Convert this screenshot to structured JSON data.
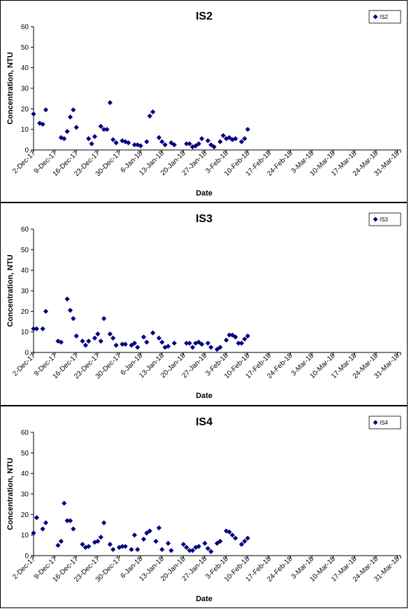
{
  "colors": {
    "marker": "#000080",
    "axis": "#000000",
    "background": "#ffffff"
  },
  "chart_data": [
    {
      "type": "scatter",
      "title": "IS2",
      "xlabel": "Date",
      "ylabel": "Concentration, NTU",
      "ylim": [
        0,
        60
      ],
      "yticks": [
        "0",
        "10",
        "20",
        "30",
        "40",
        "50",
        "60"
      ],
      "xticks": [
        "2-Dec-17",
        "9-Dec-17",
        "16-Dec-17",
        "23-Dec-17",
        "30-Dec-17",
        "6-Jan-18",
        "13-Jan-18",
        "20-Jan-18",
        "27-Jan-18",
        "3-Feb-18",
        "10-Feb-18",
        "17-Feb-18",
        "24-Feb-18",
        "3-Mar-18",
        "10-Mar-18",
        "17-Mar-18",
        "24-Mar-18",
        "31-Mar-18"
      ],
      "xlim": [
        "2017-12-02",
        "2018-04-01"
      ],
      "grid": false,
      "legend_position": "top-right",
      "marker": "diamond",
      "series": [
        {
          "name": "IS2",
          "points": [
            [
              "2017-12-02",
              17.5
            ],
            [
              "2017-12-04",
              13
            ],
            [
              "2017-12-05",
              12.5
            ],
            [
              "2017-12-06",
              19.5
            ],
            [
              "2017-12-11",
              6
            ],
            [
              "2017-12-12",
              5.5
            ],
            [
              "2017-12-13",
              9
            ],
            [
              "2017-12-14",
              16
            ],
            [
              "2017-12-15",
              19.5
            ],
            [
              "2017-12-16",
              11
            ],
            [
              "2017-12-20",
              5.5
            ],
            [
              "2017-12-21",
              3
            ],
            [
              "2017-12-22",
              6.5
            ],
            [
              "2017-12-24",
              11.5
            ],
            [
              "2017-12-25",
              10
            ],
            [
              "2017-12-26",
              10
            ],
            [
              "2017-12-27",
              23
            ],
            [
              "2017-12-28",
              5
            ],
            [
              "2017-12-29",
              3.5
            ],
            [
              "2017-12-31",
              4.5
            ],
            [
              "2018-01-01",
              4
            ],
            [
              "2018-01-02",
              3.5
            ],
            [
              "2018-01-04",
              2.5
            ],
            [
              "2018-01-05",
              2.5
            ],
            [
              "2018-01-06",
              2
            ],
            [
              "2018-01-08",
              4
            ],
            [
              "2018-01-09",
              16.5
            ],
            [
              "2018-01-10",
              18.5
            ],
            [
              "2018-01-12",
              6
            ],
            [
              "2018-01-13",
              4
            ],
            [
              "2018-01-14",
              2.5
            ],
            [
              "2018-01-16",
              3.5
            ],
            [
              "2018-01-17",
              2.5
            ],
            [
              "2018-01-21",
              3
            ],
            [
              "2018-01-22",
              3
            ],
            [
              "2018-01-23",
              1.5
            ],
            [
              "2018-01-24",
              2
            ],
            [
              "2018-01-25",
              3
            ],
            [
              "2018-01-26",
              5.5
            ],
            [
              "2018-01-28",
              4.5
            ],
            [
              "2018-01-29",
              2.5
            ],
            [
              "2018-01-30",
              1.5
            ],
            [
              "2018-02-01",
              4
            ],
            [
              "2018-02-02",
              7
            ],
            [
              "2018-02-03",
              5.5
            ],
            [
              "2018-02-04",
              6
            ],
            [
              "2018-02-05",
              5
            ],
            [
              "2018-02-06",
              5.5
            ],
            [
              "2018-02-08",
              4
            ],
            [
              "2018-02-09",
              5.5
            ],
            [
              "2018-02-10",
              10
            ]
          ]
        }
      ]
    },
    {
      "type": "scatter",
      "title": "IS3",
      "xlabel": "Date",
      "ylabel": "Concentration, NTU",
      "ylim": [
        0,
        60
      ],
      "yticks": [
        "0",
        "10",
        "20",
        "30",
        "40",
        "50",
        "60"
      ],
      "xticks": [
        "2-Dec-17",
        "9-Dec-17",
        "16-Dec-17",
        "23-Dec-17",
        "30-Dec-17",
        "6-Jan-18",
        "13-Jan-18",
        "20-Jan-18",
        "27-Jan-18",
        "3-Feb-18",
        "10-Feb-18",
        "17-Feb-18",
        "24-Feb-18",
        "3-Mar-18",
        "10-Mar-18",
        "17-Mar-18",
        "24-Mar-18",
        "31-Mar-18"
      ],
      "xlim": [
        "2017-12-02",
        "2018-04-01"
      ],
      "grid": false,
      "legend_position": "top-right",
      "marker": "diamond",
      "series": [
        {
          "name": "IS3",
          "points": [
            [
              "2017-12-02",
              11.5
            ],
            [
              "2017-12-03",
              11.5
            ],
            [
              "2017-12-05",
              11.5
            ],
            [
              "2017-12-06",
              20
            ],
            [
              "2017-12-10",
              5.5
            ],
            [
              "2017-12-11",
              5
            ],
            [
              "2017-12-13",
              26
            ],
            [
              "2017-12-14",
              20.5
            ],
            [
              "2017-12-15",
              16.5
            ],
            [
              "2017-12-16",
              8
            ],
            [
              "2017-12-18",
              5.5
            ],
            [
              "2017-12-19",
              3.5
            ],
            [
              "2017-12-20",
              5.5
            ],
            [
              "2017-12-22",
              7
            ],
            [
              "2017-12-23",
              9
            ],
            [
              "2017-12-24",
              5.5
            ],
            [
              "2017-12-25",
              16.5
            ],
            [
              "2017-12-27",
              9
            ],
            [
              "2017-12-28",
              7
            ],
            [
              "2017-12-29",
              3.5
            ],
            [
              "2017-12-31",
              4
            ],
            [
              "2018-01-01",
              4
            ],
            [
              "2018-01-03",
              3.5
            ],
            [
              "2018-01-04",
              4.5
            ],
            [
              "2018-01-05",
              2.5
            ],
            [
              "2018-01-07",
              7.5
            ],
            [
              "2018-01-08",
              5
            ],
            [
              "2018-01-10",
              9.5
            ],
            [
              "2018-01-12",
              7
            ],
            [
              "2018-01-13",
              5
            ],
            [
              "2018-01-14",
              2.5
            ],
            [
              "2018-01-15",
              3
            ],
            [
              "2018-01-17",
              4.5
            ],
            [
              "2018-01-21",
              4.5
            ],
            [
              "2018-01-22",
              4.5
            ],
            [
              "2018-01-23",
              2.5
            ],
            [
              "2018-01-24",
              4.5
            ],
            [
              "2018-01-25",
              5
            ],
            [
              "2018-01-26",
              4
            ],
            [
              "2018-01-28",
              4.5
            ],
            [
              "2018-01-29",
              2.5
            ],
            [
              "2018-01-31",
              1.5
            ],
            [
              "2018-02-01",
              2.5
            ],
            [
              "2018-02-03",
              6
            ],
            [
              "2018-02-04",
              8.5
            ],
            [
              "2018-02-05",
              8.5
            ],
            [
              "2018-02-06",
              7.5
            ],
            [
              "2018-02-07",
              4.5
            ],
            [
              "2018-02-08",
              4.5
            ],
            [
              "2018-02-09",
              6.5
            ],
            [
              "2018-02-10",
              8
            ]
          ]
        }
      ]
    },
    {
      "type": "scatter",
      "title": "IS4",
      "xlabel": "Date",
      "ylabel": "Concentration, NTU",
      "ylim": [
        0,
        60
      ],
      "yticks": [
        "0",
        "10",
        "20",
        "30",
        "40",
        "50",
        "60"
      ],
      "xticks": [
        "2-Dec-17",
        "9-Dec-17",
        "16-Dec-17",
        "23-Dec-17",
        "30-Dec-17",
        "6-Jan-18",
        "13-Jan-18",
        "20-Jan-18",
        "27-Jan-18",
        "3-Feb-18",
        "10-Feb-18",
        "17-Feb-18",
        "24-Feb-18",
        "3-Mar-18",
        "10-Mar-18",
        "17-Mar-18",
        "24-Mar-18",
        "31-Mar-18"
      ],
      "xlim": [
        "2017-12-02",
        "2018-04-01"
      ],
      "grid": false,
      "legend_position": "top-right",
      "marker": "diamond",
      "series": [
        {
          "name": "IS4",
          "points": [
            [
              "2017-12-02",
              11
            ],
            [
              "2017-12-03",
              18.5
            ],
            [
              "2017-12-05",
              13
            ],
            [
              "2017-12-06",
              16
            ],
            [
              "2017-12-10",
              5
            ],
            [
              "2017-12-11",
              7
            ],
            [
              "2017-12-12",
              25.5
            ],
            [
              "2017-12-13",
              17
            ],
            [
              "2017-12-14",
              17
            ],
            [
              "2017-12-15",
              13
            ],
            [
              "2017-12-18",
              5.5
            ],
            [
              "2017-12-19",
              4
            ],
            [
              "2017-12-20",
              4.5
            ],
            [
              "2017-12-22",
              6.5
            ],
            [
              "2017-12-23",
              7
            ],
            [
              "2017-12-24",
              9
            ],
            [
              "2017-12-25",
              16
            ],
            [
              "2017-12-27",
              5.5
            ],
            [
              "2017-12-28",
              3
            ],
            [
              "2017-12-30",
              4
            ],
            [
              "2017-12-31",
              4.5
            ],
            [
              "2018-01-01",
              4.5
            ],
            [
              "2018-01-03",
              3
            ],
            [
              "2018-01-04",
              10
            ],
            [
              "2018-01-05",
              3
            ],
            [
              "2018-01-07",
              8
            ],
            [
              "2018-01-08",
              11
            ],
            [
              "2018-01-09",
              12
            ],
            [
              "2018-01-11",
              7
            ],
            [
              "2018-01-12",
              13.5
            ],
            [
              "2018-01-13",
              3
            ],
            [
              "2018-01-15",
              6
            ],
            [
              "2018-01-16",
              2.5
            ],
            [
              "2018-01-20",
              5.5
            ],
            [
              "2018-01-21",
              4
            ],
            [
              "2018-01-22",
              2.5
            ],
            [
              "2018-01-23",
              2.5
            ],
            [
              "2018-01-24",
              4
            ],
            [
              "2018-01-25",
              4.5
            ],
            [
              "2018-01-27",
              6
            ],
            [
              "2018-01-28",
              3.5
            ],
            [
              "2018-01-29",
              2
            ],
            [
              "2018-01-31",
              6
            ],
            [
              "2018-02-01",
              7
            ],
            [
              "2018-02-03",
              12
            ],
            [
              "2018-02-04",
              11.5
            ],
            [
              "2018-02-05",
              10
            ],
            [
              "2018-02-06",
              8.5
            ],
            [
              "2018-02-08",
              5.5
            ],
            [
              "2018-02-09",
              7
            ],
            [
              "2018-02-10",
              8.5
            ]
          ]
        }
      ]
    }
  ]
}
